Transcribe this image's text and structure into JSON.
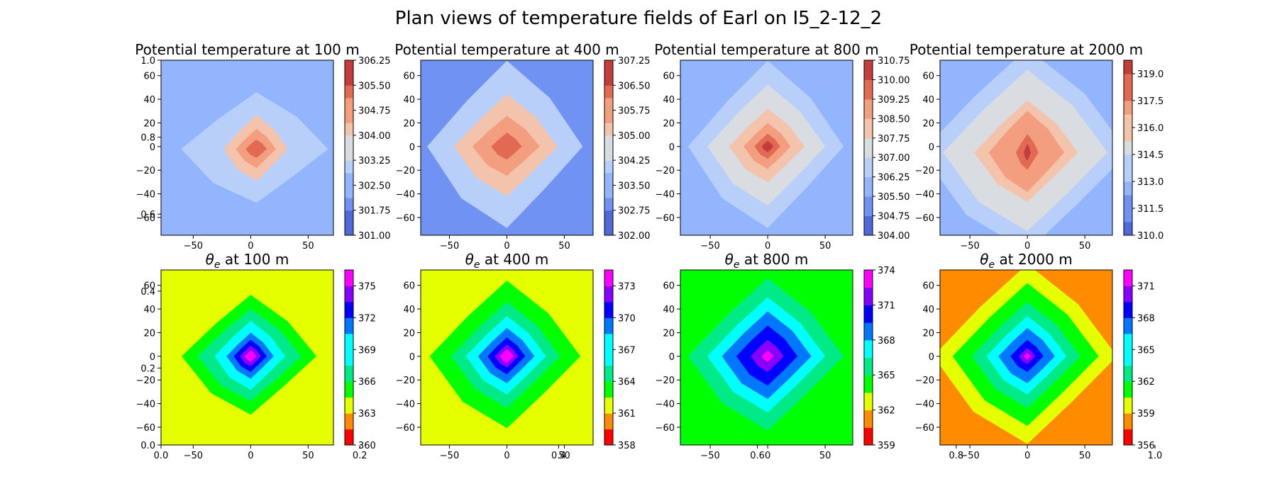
{
  "figure": {
    "suptitle": "Plan views of temperature fields of Earl on I5_2-12_2",
    "stray_ticks": {
      "left": [
        "1.0",
        "0.8",
        "0.6",
        "0.4",
        "0.2",
        "0.0"
      ],
      "bottom": [
        "0.0",
        "0.2",
        "0.4",
        "0.6",
        "0.8",
        "1.0"
      ]
    }
  },
  "palettes": {
    "coolwarm": [
      "#4f69d9",
      "#6f92f3",
      "#93b5fe",
      "#b7cff9",
      "#d9dce1",
      "#f3c4ab",
      "#f39f7f",
      "#e26a53",
      "#c43c3c"
    ],
    "rainbow": [
      "#ff0000",
      "#ff8c00",
      "#e5ff00",
      "#00ff00",
      "#00ea88",
      "#00ffff",
      "#0077ff",
      "#0000ff",
      "#8800ff",
      "#ff00ff"
    ]
  },
  "chart_data": [
    {
      "type": "filled-contour",
      "title": "Potential temperature at 100 m",
      "palette": "coolwarm",
      "xticks": [
        -50,
        0,
        50
      ],
      "yticks": [
        60,
        40,
        20,
        0,
        -20,
        -40,
        -60
      ],
      "xlim": [
        -78,
        72
      ],
      "ylim": [
        -75,
        73
      ],
      "center": [
        5,
        -2
      ],
      "background_value": 302.6,
      "levels": [
        301.0,
        301.375,
        301.75,
        302.125,
        302.5,
        302.875,
        303.25,
        303.625,
        304.0,
        304.375,
        304.75,
        305.125,
        305.5,
        305.875,
        306.25
      ],
      "colorbar_ticks": [
        "306.25",
        "305.50",
        "304.75",
        "304.00",
        "303.25",
        "302.50",
        "301.75",
        "301.00"
      ],
      "contours": [
        {
          "value": 303.25,
          "scale": 48,
          "elong": [
            1.3,
            1.0
          ]
        },
        {
          "value": 304.0,
          "scale": 26,
          "elong": [
            1.05,
            1.1
          ]
        },
        {
          "value": 304.75,
          "scale": 17,
          "elong": [
            1.0,
            1.0
          ]
        },
        {
          "value": 305.5,
          "scale": 9,
          "elong": [
            1.0,
            0.9
          ]
        }
      ]
    },
    {
      "type": "filled-contour",
      "title": "Potential temperature at 400 m",
      "palette": "coolwarm",
      "xticks": [
        -50,
        0,
        50
      ],
      "yticks": [
        60,
        40,
        20,
        0,
        -20,
        -40,
        -60
      ],
      "xlim": [
        -75,
        75
      ],
      "ylim": [
        -75,
        73
      ],
      "center": [
        0,
        0
      ],
      "background_value": 302.9,
      "levels": [
        302.0,
        302.375,
        302.75,
        303.125,
        303.5,
        303.875,
        304.25,
        304.625,
        305.0,
        305.375,
        305.75,
        306.125,
        306.5,
        306.875,
        307.25
      ],
      "colorbar_ticks": [
        "307.25",
        "306.50",
        "305.75",
        "305.00",
        "304.25",
        "303.50",
        "302.75",
        "302.00"
      ],
      "contours": [
        {
          "value": 304.25,
          "scale": 66,
          "elong": [
            1.0,
            1.1
          ]
        },
        {
          "value": 305.0,
          "scale": 44,
          "elong": [
            1.0,
            1.0
          ]
        },
        {
          "value": 305.75,
          "scale": 26,
          "elong": [
            1.1,
            1.0
          ]
        },
        {
          "value": 306.5,
          "scale": 13,
          "elong": [
            1.0,
            0.9
          ]
        }
      ]
    },
    {
      "type": "filled-contour",
      "title": "Potential temperature at 800 m",
      "palette": "coolwarm",
      "xticks": [
        -50,
        0,
        50
      ],
      "yticks": [
        60,
        40,
        20,
        0,
        -20,
        -40,
        -60
      ],
      "xlim": [
        -76,
        74
      ],
      "ylim": [
        -75,
        73
      ],
      "center": [
        0,
        0
      ],
      "background_value": 305.9,
      "levels": [
        304.0,
        304.375,
        304.75,
        305.125,
        305.5,
        305.875,
        306.25,
        306.625,
        307.0,
        307.375,
        307.75,
        308.125,
        308.5,
        308.875,
        309.25,
        309.625,
        310.0,
        310.375,
        310.75
      ],
      "colorbar_ticks": [
        "310.75",
        "310.00",
        "309.25",
        "308.50",
        "307.75",
        "307.00",
        "306.25",
        "305.50",
        "304.75",
        "304.00"
      ],
      "contours": [
        {
          "value": 306.25,
          "scale": 66,
          "elong": [
            1.0,
            1.1
          ]
        },
        {
          "value": 307.0,
          "scale": 50,
          "elong": [
            1.0,
            1.05
          ]
        },
        {
          "value": 307.75,
          "scale": 32,
          "elong": [
            1.0,
            1.0
          ]
        },
        {
          "value": 308.5,
          "scale": 20,
          "elong": [
            1.0,
            1.0
          ]
        },
        {
          "value": 309.25,
          "scale": 11,
          "elong": [
            1.0,
            1.0
          ]
        },
        {
          "value": 310.0,
          "scale": 5,
          "elong": [
            1.0,
            1.0
          ]
        }
      ]
    },
    {
      "type": "filled-contour",
      "title": "Potential temperature at 2000 m",
      "palette": "coolwarm",
      "xticks": [
        -50,
        0,
        50
      ],
      "yticks": [
        60,
        40,
        20,
        0,
        -20,
        -40,
        -60
      ],
      "xlim": [
        -76,
        74
      ],
      "ylim": [
        -75,
        73
      ],
      "center": [
        0,
        -5
      ],
      "background_value": 312.5,
      "levels": [
        310.0,
        310.75,
        311.5,
        312.25,
        313.0,
        313.75,
        314.5,
        315.25,
        316.0,
        316.75,
        317.5,
        318.25,
        319.0,
        319.75
      ],
      "colorbar_ticks": [
        "319.0",
        "317.5",
        "316.0",
        "314.5",
        "313.0",
        "311.5",
        "310.0"
      ],
      "contours": [
        {
          "value": 313.75,
          "scale": 88,
          "elong": [
            1.0,
            1.0
          ]
        },
        {
          "value": 314.5,
          "scale": 70,
          "elong": [
            1.0,
            1.0
          ]
        },
        {
          "value": 315.25,
          "scale": 56,
          "elong": [
            1.0,
            1.0
          ]
        },
        {
          "value": 316.0,
          "scale": 44,
          "elong": [
            1.0,
            1.0
          ]
        },
        {
          "value": 316.75,
          "scale": 32,
          "elong": [
            1.0,
            1.1
          ]
        },
        {
          "value": 317.5,
          "scale": 22,
          "elong": [
            0.9,
            1.2
          ]
        },
        {
          "value": 318.25,
          "scale": 12,
          "elong": [
            0.8,
            1.3
          ]
        },
        {
          "value": 319.0,
          "scale": 5,
          "elong": [
            0.6,
            1.5
          ]
        }
      ]
    },
    {
      "type": "filled-contour",
      "title": "at 100 m",
      "title_symbol": "θ",
      "title_subscript": "e",
      "palette": "rainbow",
      "xticks": [
        -50,
        0,
        50
      ],
      "yticks": [
        60,
        40,
        20,
        0,
        -20,
        -40,
        -60
      ],
      "xlim": [
        -78,
        72
      ],
      "ylim": [
        -75,
        73
      ],
      "center": [
        0,
        0
      ],
      "background_value": 364.5,
      "levels": [
        360,
        361.5,
        363,
        364.5,
        366,
        367.5,
        369,
        370.5,
        372,
        373.5,
        375,
        376.5
      ],
      "colorbar_ticks": [
        "375",
        "372",
        "369",
        "366",
        "363",
        "360"
      ],
      "contours": [
        {
          "value": 366.0,
          "scale": 52,
          "elong": [
            1.1,
            1.0
          ]
        },
        {
          "value": 367.5,
          "scale": 40,
          "elong": [
            1.1,
            1.0
          ]
        },
        {
          "value": 369.0,
          "scale": 30,
          "elong": [
            1.0,
            1.0
          ]
        },
        {
          "value": 370.5,
          "scale": 20,
          "elong": [
            1.0,
            1.0
          ]
        },
        {
          "value": 372.0,
          "scale": 14,
          "elong": [
            1.0,
            1.0
          ]
        },
        {
          "value": 373.5,
          "scale": 9,
          "elong": [
            1.0,
            1.0
          ]
        },
        {
          "value": 375.0,
          "scale": 5,
          "elong": [
            1.0,
            1.0
          ]
        }
      ]
    },
    {
      "type": "filled-contour",
      "title": "at 400 m",
      "title_symbol": "θ",
      "title_subscript": "e",
      "palette": "rainbow",
      "xticks": [
        -50,
        0,
        50
      ],
      "yticks": [
        60,
        40,
        20,
        0,
        -20,
        -40,
        -60
      ],
      "xlim": [
        -75,
        75
      ],
      "ylim": [
        -75,
        73
      ],
      "center": [
        0,
        0
      ],
      "background_value": 362.0,
      "levels": [
        358,
        359.5,
        361,
        362.5,
        364,
        365.5,
        367,
        368.5,
        370,
        371.5,
        373,
        374.5
      ],
      "colorbar_ticks": [
        "373",
        "370",
        "367",
        "364",
        "361",
        "358"
      ],
      "contours": [
        {
          "value": 364.0,
          "scale": 64,
          "elong": [
            1.0,
            1.0
          ]
        },
        {
          "value": 365.5,
          "scale": 46,
          "elong": [
            1.0,
            1.0
          ]
        },
        {
          "value": 367.0,
          "scale": 34,
          "elong": [
            1.0,
            1.0
          ]
        },
        {
          "value": 368.5,
          "scale": 24,
          "elong": [
            1.0,
            1.0
          ]
        },
        {
          "value": 370.0,
          "scale": 16,
          "elong": [
            1.0,
            1.0
          ]
        },
        {
          "value": 371.5,
          "scale": 10,
          "elong": [
            1.0,
            1.0
          ]
        },
        {
          "value": 373.0,
          "scale": 6,
          "elong": [
            1.0,
            1.0
          ]
        }
      ]
    },
    {
      "type": "filled-contour",
      "title": "at 800 m",
      "title_symbol": "θ",
      "title_subscript": "e",
      "palette": "rainbow",
      "xticks": [
        -50,
        0,
        50
      ],
      "yticks": [
        60,
        40,
        20,
        0,
        -20,
        -40,
        -60
      ],
      "xlim": [
        -76,
        74
      ],
      "ylim": [
        -75,
        73
      ],
      "center": [
        0,
        0
      ],
      "background_value": 363.5,
      "levels": [
        359,
        360.5,
        362,
        363.5,
        365,
        366.5,
        368,
        369.5,
        371,
        372.5,
        374
      ],
      "colorbar_ticks": [
        "374",
        "371",
        "368",
        "365",
        "362",
        "359"
      ],
      "contours": [
        {
          "value": 365.0,
          "scale": 66,
          "elong": [
            1.0,
            1.0
          ]
        },
        {
          "value": 366.5,
          "scale": 50,
          "elong": [
            1.0,
            1.0
          ]
        },
        {
          "value": 368.0,
          "scale": 38,
          "elong": [
            1.0,
            1.0
          ]
        },
        {
          "value": 369.5,
          "scale": 26,
          "elong": [
            1.0,
            1.0
          ]
        },
        {
          "value": 371.0,
          "scale": 14,
          "elong": [
            1.0,
            1.0
          ]
        },
        {
          "value": 372.5,
          "scale": 5,
          "elong": [
            1.0,
            1.0
          ]
        }
      ]
    },
    {
      "type": "filled-contour",
      "title": "at 2000 m",
      "title_symbol": "θ",
      "title_subscript": "e",
      "palette": "rainbow",
      "xticks": [
        -50,
        0,
        50
      ],
      "yticks": [
        60,
        40,
        20,
        0,
        -20,
        -40,
        -60
      ],
      "xlim": [
        -76,
        74
      ],
      "ylim": [
        -75,
        73
      ],
      "center": [
        0,
        0
      ],
      "background_value": 359.0,
      "levels": [
        356,
        357.5,
        359,
        360.5,
        362,
        363.5,
        365,
        366.5,
        368,
        369.5,
        371,
        372.5
      ],
      "colorbar_ticks": [
        "371",
        "368",
        "365",
        "362",
        "359",
        "356"
      ],
      "contours": [
        {
          "value": 360.5,
          "scale": 78,
          "elong": [
            1.0,
            1.0
          ]
        },
        {
          "value": 362.0,
          "scale": 62,
          "elong": [
            1.0,
            1.0
          ]
        },
        {
          "value": 363.5,
          "scale": 46,
          "elong": [
            1.0,
            1.0
          ]
        },
        {
          "value": 365.0,
          "scale": 34,
          "elong": [
            1.0,
            1.0
          ]
        },
        {
          "value": 366.5,
          "scale": 24,
          "elong": [
            1.0,
            1.0
          ]
        },
        {
          "value": 368.0,
          "scale": 14,
          "elong": [
            1.0,
            1.0
          ]
        },
        {
          "value": 369.5,
          "scale": 7,
          "elong": [
            1.0,
            1.0
          ]
        },
        {
          "value": 371.0,
          "scale": 3,
          "elong": [
            1.0,
            1.0
          ]
        }
      ]
    }
  ]
}
